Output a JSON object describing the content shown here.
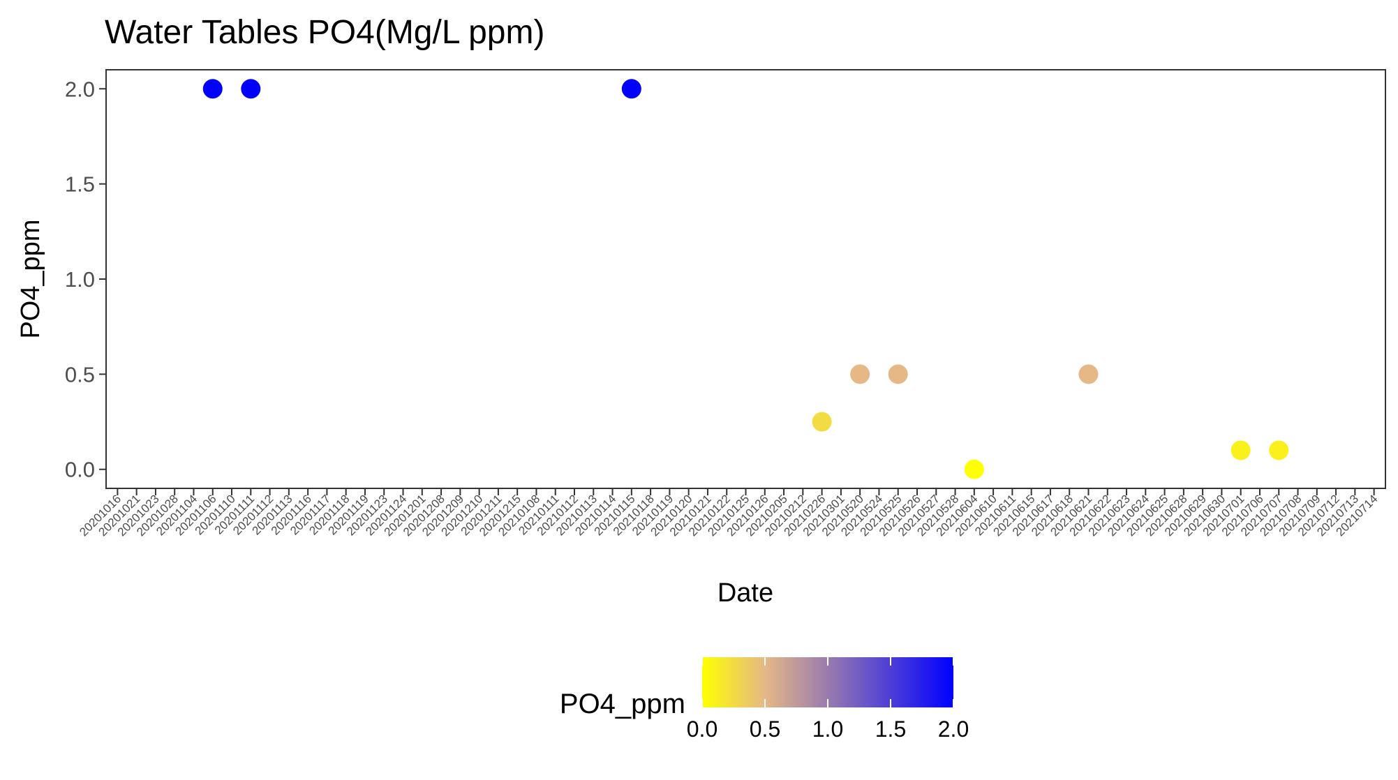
{
  "chart_data": {
    "type": "scatter",
    "title": "Water Tables PO4(Mg/L ppm)",
    "xlabel": "Date",
    "ylabel": "PO4_ppm",
    "x_axis_type": "categorical",
    "categories": [
      "20201016",
      "20201021",
      "20201023",
      "20201028",
      "20201104",
      "20201106",
      "20201110",
      "20201111",
      "20201112",
      "20201113",
      "20201116",
      "20201117",
      "20201118",
      "20201119",
      "20201123",
      "20201124",
      "20201201",
      "20201208",
      "20201209",
      "20201210",
      "20201211",
      "20201215",
      "20210108",
      "20210111",
      "20210112",
      "20210113",
      "20210114",
      "20210115",
      "20210118",
      "20210119",
      "20210120",
      "20210121",
      "20210122",
      "20210125",
      "20210126",
      "20210205",
      "20210212",
      "20210226",
      "20210301",
      "20210520",
      "20210524",
      "20210525",
      "20210526",
      "20210527",
      "20210528",
      "20210604",
      "20210610",
      "20210611",
      "20210615",
      "20210617",
      "20210618",
      "20210621",
      "20210622",
      "20210623",
      "20210624",
      "20210625",
      "20210628",
      "20210629",
      "20210630",
      "20210701",
      "20210706",
      "20210707",
      "20210708",
      "20210709",
      "20210712",
      "20210713",
      "20210714"
    ],
    "points": [
      {
        "x": "20201106",
        "y": 2.0
      },
      {
        "x": "20201111",
        "y": 2.0
      },
      {
        "x": "20210115",
        "y": 2.0
      },
      {
        "x": "20210226",
        "y": 0.25
      },
      {
        "x": "20210520",
        "y": 0.5
      },
      {
        "x": "20210525",
        "y": 0.5
      },
      {
        "x": "20210604",
        "y": 0.0
      },
      {
        "x": "20210621",
        "y": 0.5
      },
      {
        "x": "20210701",
        "y": 0.1
      },
      {
        "x": "20210707",
        "y": 0.1
      }
    ],
    "y_ticks": [
      "0.0",
      "0.5",
      "1.0",
      "1.5",
      "2.0"
    ],
    "ylim": [
      -0.1,
      2.1
    ],
    "grid": false,
    "color_scale": {
      "title": "PO4_ppm",
      "low_color": "#ffff00",
      "mid_color": "#e5b886",
      "mid_value": 0.5,
      "high_color": "#0000ff",
      "range": [
        0.0,
        2.0
      ],
      "tick_labels": [
        "0.0",
        "0.5",
        "1.0",
        "1.5",
        "2.0"
      ]
    },
    "legend_position": "bottom"
  }
}
